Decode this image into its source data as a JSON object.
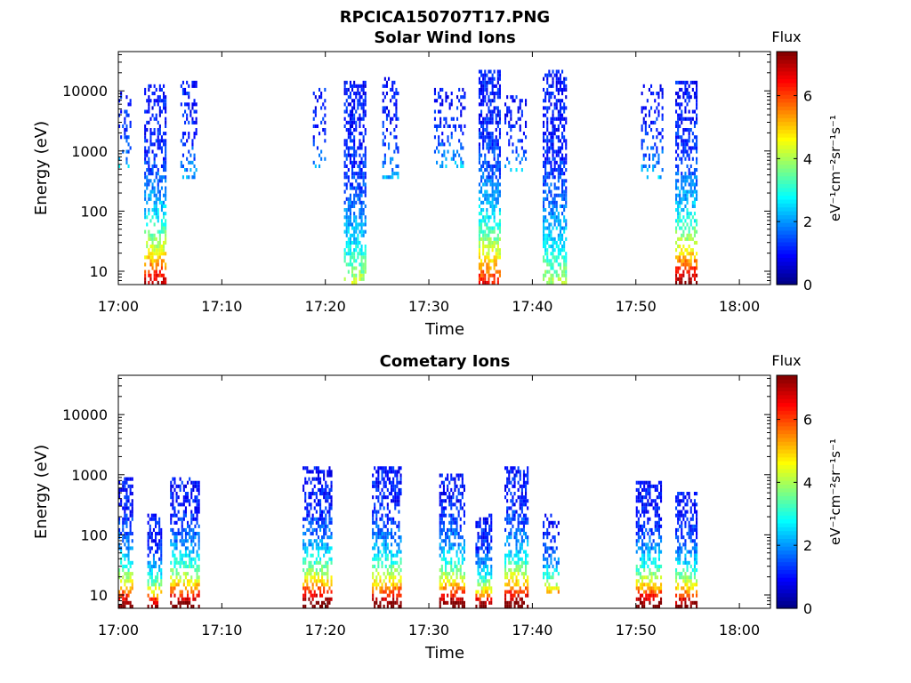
{
  "figure_title": "RPCICA150707T17.PNG",
  "colors": {
    "axis": "#000000"
  },
  "chart_data": [
    {
      "type": "heatmap",
      "title": "Solar Wind Ions",
      "xlabel": "Time",
      "ylabel": "Energy (eV)",
      "x_ticks": [
        "17:00",
        "17:10",
        "17:20",
        "17:30",
        "17:40",
        "17:50",
        "18:00"
      ],
      "y_ticks": [
        "10",
        "100",
        "1000",
        "10000"
      ],
      "y_scale": "log",
      "y_range_ev": [
        6,
        45000
      ],
      "x_range_min": [
        0,
        63
      ],
      "colorbar": {
        "label": "Flux",
        "unit": "eV⁻¹cm⁻²sr⁻¹s⁻¹",
        "ticks": [
          "0",
          "2",
          "4",
          "6"
        ],
        "range": [
          0,
          7.4
        ]
      },
      "bursts": [
        {
          "t_start_min": 0.0,
          "t_end_min": 1.2,
          "e_low_ev": 500,
          "e_high_ev": 9000,
          "peak_flux": 1.4,
          "density": 0.25
        },
        {
          "t_start_min": 2.5,
          "t_end_min": 4.5,
          "e_low_ev": 6,
          "e_high_ev": 12000,
          "peak_flux": 6.0,
          "density": 0.55
        },
        {
          "t_start_min": 6.0,
          "t_end_min": 7.6,
          "e_low_ev": 300,
          "e_high_ev": 13000,
          "peak_flux": 1.2,
          "density": 0.3
        },
        {
          "t_start_min": 18.8,
          "t_end_min": 20.0,
          "e_low_ev": 400,
          "e_high_ev": 10000,
          "peak_flux": 1.2,
          "density": 0.3
        },
        {
          "t_start_min": 21.8,
          "t_end_min": 23.8,
          "e_low_ev": 6,
          "e_high_ev": 14000,
          "peak_flux": 3.2,
          "density": 0.6
        },
        {
          "t_start_min": 25.5,
          "t_end_min": 27.0,
          "e_low_ev": 300,
          "e_high_ev": 15000,
          "peak_flux": 1.3,
          "density": 0.3
        },
        {
          "t_start_min": 30.5,
          "t_end_min": 33.5,
          "e_low_ev": 500,
          "e_high_ev": 10000,
          "peak_flux": 1.3,
          "density": 0.3
        },
        {
          "t_start_min": 34.8,
          "t_end_min": 36.8,
          "e_low_ev": 6,
          "e_high_ev": 20000,
          "peak_flux": 5.5,
          "density": 0.6
        },
        {
          "t_start_min": 37.3,
          "t_end_min": 39.3,
          "e_low_ev": 400,
          "e_high_ev": 8000,
          "peak_flux": 1.3,
          "density": 0.3
        },
        {
          "t_start_min": 41.0,
          "t_end_min": 43.2,
          "e_low_ev": 6,
          "e_high_ev": 20000,
          "peak_flux": 3.0,
          "density": 0.6
        },
        {
          "t_start_min": 50.5,
          "t_end_min": 52.5,
          "e_low_ev": 300,
          "e_high_ev": 12000,
          "peak_flux": 1.4,
          "density": 0.3
        },
        {
          "t_start_min": 53.8,
          "t_end_min": 55.8,
          "e_low_ev": 6,
          "e_high_ev": 14000,
          "peak_flux": 6.3,
          "density": 0.55
        }
      ]
    },
    {
      "type": "heatmap",
      "title": "Cometary Ions",
      "xlabel": "Time",
      "ylabel": "Energy (eV)",
      "x_ticks": [
        "17:00",
        "17:10",
        "17:20",
        "17:30",
        "17:40",
        "17:50",
        "18:00"
      ],
      "y_ticks": [
        "10",
        "100",
        "1000",
        "10000"
      ],
      "y_scale": "log",
      "y_range_ev": [
        6,
        45000
      ],
      "x_range_min": [
        0,
        63
      ],
      "colorbar": {
        "label": "Flux",
        "unit": "eV⁻¹cm⁻²sr⁻¹s⁻¹",
        "ticks": [
          "0",
          "2",
          "4",
          "6"
        ],
        "range": [
          0,
          7.4
        ]
      },
      "bursts": [
        {
          "t_start_min": 0.0,
          "t_end_min": 1.3,
          "e_low_ev": 6,
          "e_high_ev": 900,
          "peak_flux": 6.8,
          "density": 0.55
        },
        {
          "t_start_min": 2.8,
          "t_end_min": 4.2,
          "e_low_ev": 6,
          "e_high_ev": 200,
          "peak_flux": 6.5,
          "density": 0.55
        },
        {
          "t_start_min": 5.0,
          "t_end_min": 7.8,
          "e_low_ev": 6,
          "e_high_ev": 900,
          "peak_flux": 7.0,
          "density": 0.55
        },
        {
          "t_start_min": 17.8,
          "t_end_min": 20.5,
          "e_low_ev": 6,
          "e_high_ev": 1200,
          "peak_flux": 7.2,
          "density": 0.55
        },
        {
          "t_start_min": 24.5,
          "t_end_min": 27.2,
          "e_low_ev": 6,
          "e_high_ev": 1200,
          "peak_flux": 7.0,
          "density": 0.5
        },
        {
          "t_start_min": 31.0,
          "t_end_min": 33.5,
          "e_low_ev": 6,
          "e_high_ev": 1000,
          "peak_flux": 7.0,
          "density": 0.55
        },
        {
          "t_start_min": 34.5,
          "t_end_min": 36.0,
          "e_low_ev": 6,
          "e_high_ev": 200,
          "peak_flux": 6.8,
          "density": 0.55
        },
        {
          "t_start_min": 37.3,
          "t_end_min": 39.5,
          "e_low_ev": 6,
          "e_high_ev": 1200,
          "peak_flux": 7.2,
          "density": 0.55
        },
        {
          "t_start_min": 41.0,
          "t_end_min": 42.5,
          "e_low_ev": 10,
          "e_high_ev": 200,
          "peak_flux": 4.5,
          "density": 0.4
        },
        {
          "t_start_min": 50.0,
          "t_end_min": 52.5,
          "e_low_ev": 6,
          "e_high_ev": 700,
          "peak_flux": 7.0,
          "density": 0.55
        },
        {
          "t_start_min": 53.8,
          "t_end_min": 55.8,
          "e_low_ev": 6,
          "e_high_ev": 500,
          "peak_flux": 6.8,
          "density": 0.55
        }
      ]
    }
  ]
}
